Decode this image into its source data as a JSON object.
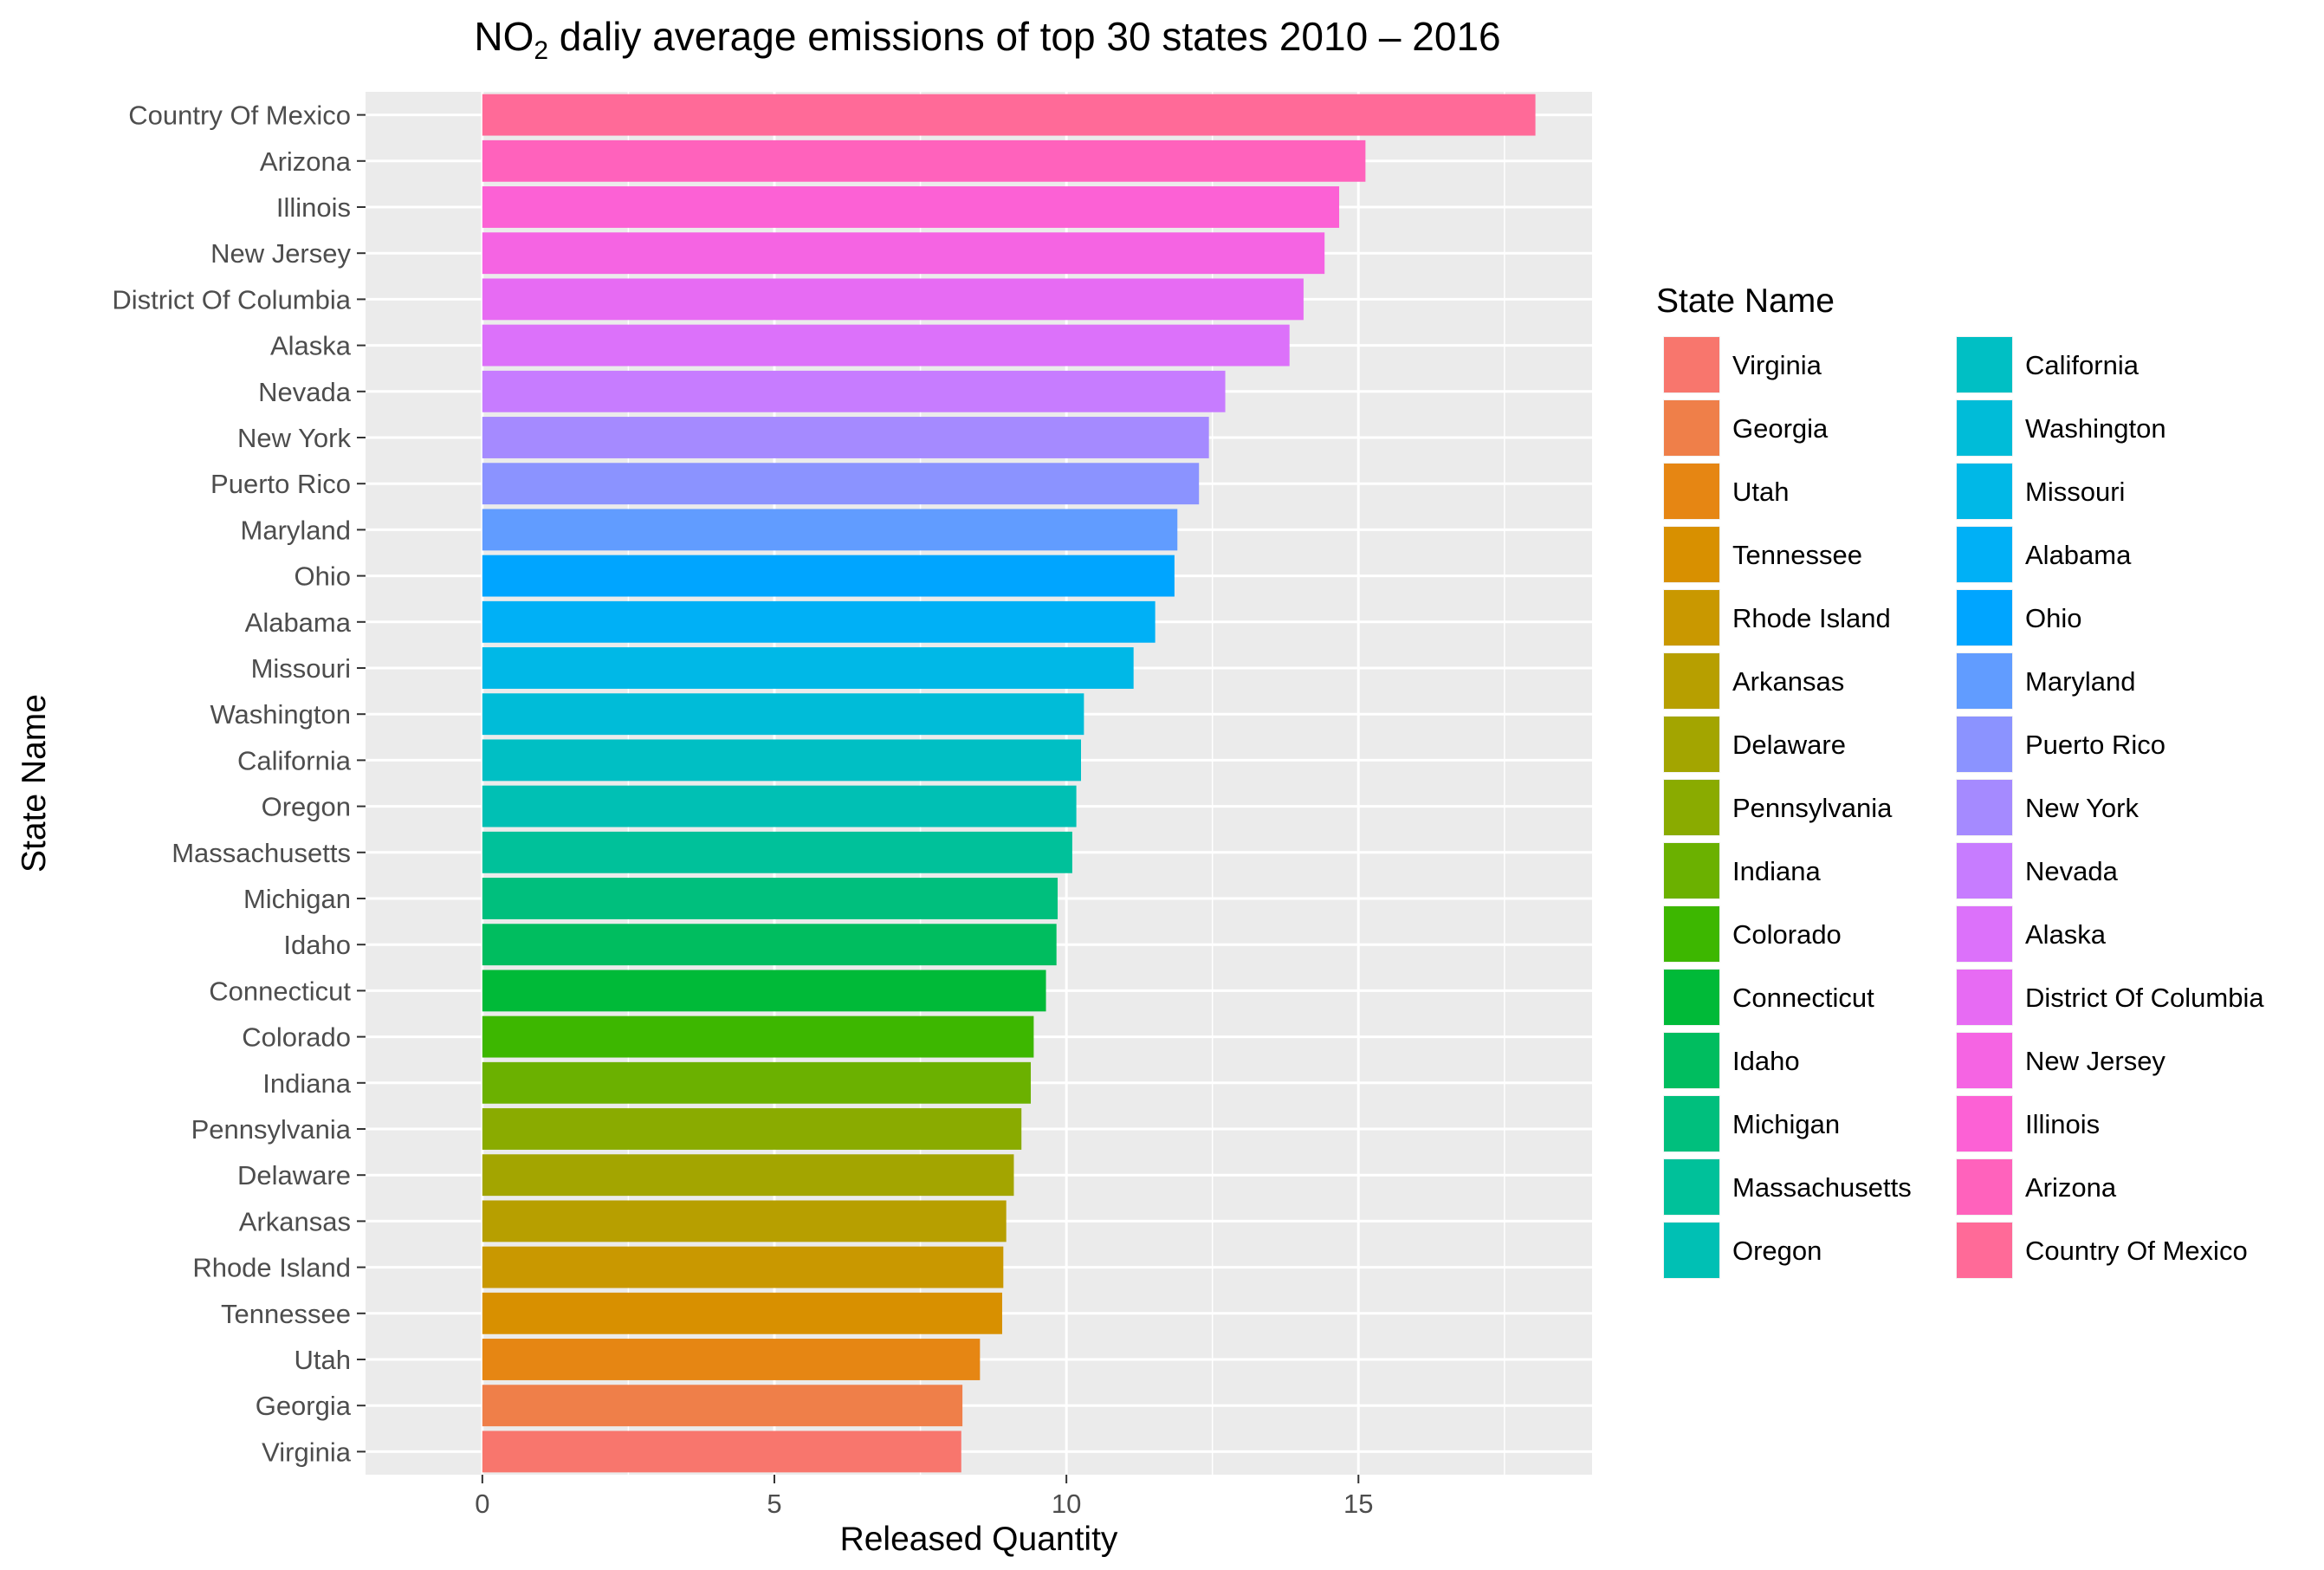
{
  "chart_data": {
    "type": "bar",
    "orientation": "horizontal",
    "title": "NO₂ daliy average emissions of top 30 states 2010 – 2016",
    "title_main": "NO",
    "title_sub": "2",
    "title_rest": " daliy average emissions of top 30 states 2010 – 2016",
    "xlabel": "Released Quantity",
    "ylabel": "State Name",
    "xlim": [
      -2,
      19
    ],
    "xticks": [
      "0",
      "5",
      "10",
      "15"
    ],
    "xtick_values": [
      0,
      5,
      10,
      15
    ],
    "grid": true,
    "panel_background": "#ebebeb",
    "legend": {
      "title": "State Name",
      "placement": "right",
      "columns": 2
    },
    "categories": [
      "Virginia",
      "Georgia",
      "Utah",
      "Tennessee",
      "Rhode Island",
      "Arkansas",
      "Delaware",
      "Pennsylvania",
      "Indiana",
      "Colorado",
      "Connecticut",
      "Idaho",
      "Michigan",
      "Massachusetts",
      "Oregon",
      "California",
      "Washington",
      "Missouri",
      "Alabama",
      "Ohio",
      "Maryland",
      "Puerto Rico",
      "New York",
      "Nevada",
      "Alaska",
      "District Of Columbia",
      "New Jersey",
      "Illinois",
      "Arizona",
      "Country Of Mexico"
    ],
    "values": [
      8.2,
      8.22,
      8.52,
      8.9,
      8.92,
      8.97,
      9.1,
      9.23,
      9.39,
      9.44,
      9.65,
      9.83,
      9.85,
      10.1,
      10.17,
      10.25,
      10.3,
      11.15,
      11.52,
      11.85,
      11.9,
      12.27,
      12.44,
      12.72,
      13.82,
      14.06,
      14.42,
      14.67,
      15.12,
      18.03
    ],
    "colors": [
      "#F8766D",
      "#EF7F49",
      "#E68613",
      "#D89000",
      "#C99800",
      "#B79F00",
      "#A3A500",
      "#8AAB00",
      "#6BB100",
      "#3DB700",
      "#00BA38",
      "#00BD5F",
      "#00BF7D",
      "#00C19A",
      "#00C0B4",
      "#00BFC4",
      "#00BCD8",
      "#00B8E7",
      "#00B0F6",
      "#00A5FF",
      "#619CFF",
      "#8B93FF",
      "#A58AFF",
      "#C77CFF",
      "#DC71FA",
      "#E76BF3",
      "#F564E3",
      "#FC61D5",
      "#FF62BC",
      "#FF6A98"
    ]
  }
}
